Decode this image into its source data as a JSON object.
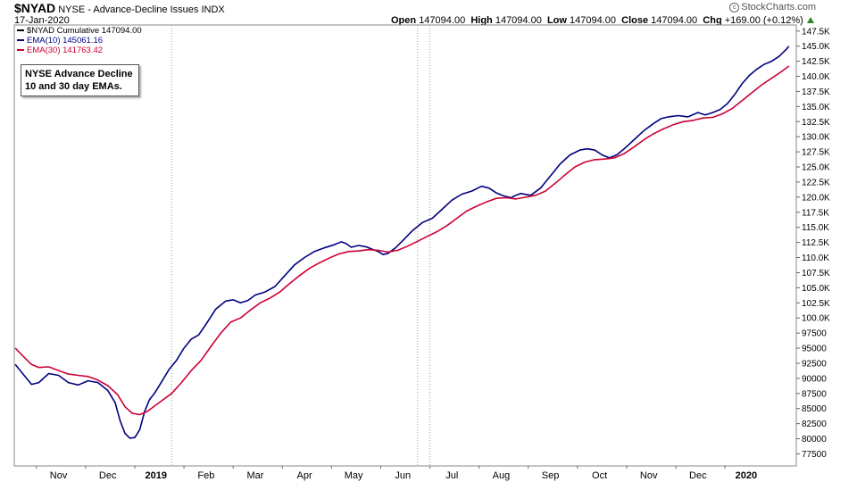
{
  "header": {
    "symbol": "$NYAD",
    "description": "NYSE - Advance-Decline Issues",
    "exchange": "INDX",
    "date": "17-Jan-2020",
    "watermark": "StockCharts.com",
    "open_label": "Open",
    "open": "147094.00",
    "high_label": "High",
    "high": "147094.00",
    "low_label": "Low",
    "low": "147094.00",
    "close_label": "Close",
    "close": "147094.00",
    "chg_label": "Chg",
    "chg": "+169.00 (+0.12%)",
    "chg_arrow_color": "#2a8a2a"
  },
  "legend": [
    {
      "label": "$NYAD Cumulative 147094.00",
      "color": "#000000"
    },
    {
      "label": "EMA(10) 145061.16",
      "color": "#000080"
    },
    {
      "label": "EMA(30) 141763.42",
      "color": "#cc0033"
    }
  ],
  "annotation": {
    "line1": "NYSE Advance Decline",
    "line2": "10 and 30 day EMAs."
  },
  "chart_data": {
    "type": "line",
    "x_tick_labels": [
      "Nov",
      "Dec",
      "2019",
      "Feb",
      "Mar",
      "Apr",
      "May",
      "Jun",
      "Jul",
      "Aug",
      "Sep",
      "Oct",
      "Nov",
      "Dec",
      "2020"
    ],
    "bold_x_ticks": [
      "2019",
      "2020"
    ],
    "y_tick_labels": [
      "147.5K",
      "145.0K",
      "142.5K",
      "140.0K",
      "137.5K",
      "135.0K",
      "132.5K",
      "130.0K",
      "127.5K",
      "125.0K",
      "122.5K",
      "120.0K",
      "117.5K",
      "115.0K",
      "112.5K",
      "110.0K",
      "107.5K",
      "105.0K",
      "102.5K",
      "100.0K",
      "97500",
      "95000",
      "92500",
      "90000",
      "87500",
      "85000",
      "82500",
      "80000",
      "77500"
    ],
    "ylim": [
      75500,
      148500
    ],
    "x_domain_months": [
      -1.3,
      14.6
    ],
    "x_tick_positions_months": [
      -0.4,
      0.6,
      1.6,
      2.6,
      3.6,
      4.6,
      5.6,
      6.6,
      7.6,
      8.6,
      9.6,
      10.6,
      11.6,
      12.6,
      13.6
    ],
    "vertical_dashed_lines_months": [
      1.9,
      6.9,
      7.15
    ],
    "grid": false,
    "legend_position": "top-left",
    "series": [
      {
        "name": "EMA(10) 145061.16",
        "color": "#000080",
        "points": [
          [
            -1.28,
            92300
          ],
          [
            -1.1,
            90500
          ],
          [
            -0.95,
            89000
          ],
          [
            -0.8,
            89300
          ],
          [
            -0.6,
            90800
          ],
          [
            -0.4,
            90500
          ],
          [
            -0.2,
            89300
          ],
          [
            0.0,
            88900
          ],
          [
            0.2,
            89600
          ],
          [
            0.4,
            89300
          ],
          [
            0.6,
            88000
          ],
          [
            0.75,
            86000
          ],
          [
            0.85,
            83000
          ],
          [
            0.95,
            80900
          ],
          [
            1.05,
            80100
          ],
          [
            1.15,
            80200
          ],
          [
            1.25,
            81500
          ],
          [
            1.35,
            84500
          ],
          [
            1.45,
            86500
          ],
          [
            1.55,
            87500
          ],
          [
            1.7,
            89500
          ],
          [
            1.85,
            91500
          ],
          [
            2.0,
            93000
          ],
          [
            2.15,
            95000
          ],
          [
            2.3,
            96500
          ],
          [
            2.45,
            97200
          ],
          [
            2.6,
            99000
          ],
          [
            2.8,
            101500
          ],
          [
            3.0,
            102800
          ],
          [
            3.15,
            103000
          ],
          [
            3.3,
            102500
          ],
          [
            3.45,
            102900
          ],
          [
            3.6,
            103800
          ],
          [
            3.8,
            104300
          ],
          [
            4.0,
            105200
          ],
          [
            4.2,
            107000
          ],
          [
            4.4,
            108800
          ],
          [
            4.6,
            110000
          ],
          [
            4.8,
            111000
          ],
          [
            5.0,
            111600
          ],
          [
            5.2,
            112100
          ],
          [
            5.35,
            112600
          ],
          [
            5.45,
            112300
          ],
          [
            5.55,
            111700
          ],
          [
            5.7,
            112000
          ],
          [
            5.85,
            111800
          ],
          [
            6.0,
            111300
          ],
          [
            6.1,
            111000
          ],
          [
            6.2,
            110500
          ],
          [
            6.3,
            110700
          ],
          [
            6.45,
            111600
          ],
          [
            6.6,
            112800
          ],
          [
            6.8,
            114500
          ],
          [
            7.0,
            115800
          ],
          [
            7.2,
            116500
          ],
          [
            7.4,
            118000
          ],
          [
            7.6,
            119500
          ],
          [
            7.8,
            120500
          ],
          [
            8.0,
            121000
          ],
          [
            8.2,
            121800
          ],
          [
            8.35,
            121500
          ],
          [
            8.5,
            120700
          ],
          [
            8.65,
            120200
          ],
          [
            8.8,
            119900
          ],
          [
            8.9,
            120300
          ],
          [
            9.0,
            120600
          ],
          [
            9.2,
            120300
          ],
          [
            9.4,
            121500
          ],
          [
            9.6,
            123500
          ],
          [
            9.8,
            125500
          ],
          [
            10.0,
            127000
          ],
          [
            10.2,
            127800
          ],
          [
            10.35,
            128000
          ],
          [
            10.5,
            127800
          ],
          [
            10.65,
            127000
          ],
          [
            10.8,
            126500
          ],
          [
            10.95,
            127000
          ],
          [
            11.1,
            128000
          ],
          [
            11.3,
            129500
          ],
          [
            11.5,
            131000
          ],
          [
            11.7,
            132200
          ],
          [
            11.85,
            133000
          ],
          [
            12.0,
            133300
          ],
          [
            12.2,
            133500
          ],
          [
            12.4,
            133300
          ],
          [
            12.6,
            134000
          ],
          [
            12.75,
            133600
          ],
          [
            12.9,
            134000
          ],
          [
            13.05,
            134500
          ],
          [
            13.2,
            135500
          ],
          [
            13.35,
            137000
          ],
          [
            13.5,
            138800
          ],
          [
            13.65,
            140200
          ],
          [
            13.8,
            141200
          ],
          [
            13.95,
            142000
          ],
          [
            14.1,
            142500
          ],
          [
            14.25,
            143300
          ],
          [
            14.4,
            144500
          ],
          [
            14.45,
            145000
          ]
        ]
      },
      {
        "name": "EMA(30) 141763.42",
        "color": "#cc0033",
        "points": [
          [
            -1.28,
            95000
          ],
          [
            -1.1,
            93500
          ],
          [
            -0.95,
            92300
          ],
          [
            -0.8,
            91800
          ],
          [
            -0.6,
            91900
          ],
          [
            -0.4,
            91300
          ],
          [
            -0.2,
            90700
          ],
          [
            0.0,
            90500
          ],
          [
            0.2,
            90300
          ],
          [
            0.4,
            89700
          ],
          [
            0.6,
            88800
          ],
          [
            0.8,
            87300
          ],
          [
            0.95,
            85300
          ],
          [
            1.1,
            84200
          ],
          [
            1.25,
            84000
          ],
          [
            1.4,
            84500
          ],
          [
            1.55,
            85400
          ],
          [
            1.7,
            86300
          ],
          [
            1.9,
            87500
          ],
          [
            2.1,
            89300
          ],
          [
            2.3,
            91300
          ],
          [
            2.5,
            93000
          ],
          [
            2.7,
            95300
          ],
          [
            2.9,
            97500
          ],
          [
            3.1,
            99300
          ],
          [
            3.3,
            100000
          ],
          [
            3.5,
            101300
          ],
          [
            3.7,
            102500
          ],
          [
            3.9,
            103300
          ],
          [
            4.1,
            104300
          ],
          [
            4.3,
            105700
          ],
          [
            4.5,
            107000
          ],
          [
            4.7,
            108200
          ],
          [
            4.9,
            109100
          ],
          [
            5.1,
            109900
          ],
          [
            5.3,
            110600
          ],
          [
            5.5,
            111000
          ],
          [
            5.7,
            111100
          ],
          [
            5.9,
            111300
          ],
          [
            6.1,
            111200
          ],
          [
            6.3,
            110900
          ],
          [
            6.5,
            111200
          ],
          [
            6.7,
            111900
          ],
          [
            6.9,
            112700
          ],
          [
            7.1,
            113500
          ],
          [
            7.3,
            114300
          ],
          [
            7.5,
            115300
          ],
          [
            7.7,
            116500
          ],
          [
            7.9,
            117700
          ],
          [
            8.1,
            118500
          ],
          [
            8.3,
            119200
          ],
          [
            8.5,
            119800
          ],
          [
            8.7,
            119900
          ],
          [
            8.9,
            119700
          ],
          [
            9.1,
            120000
          ],
          [
            9.3,
            120300
          ],
          [
            9.5,
            121000
          ],
          [
            9.7,
            122300
          ],
          [
            9.9,
            123700
          ],
          [
            10.1,
            125000
          ],
          [
            10.3,
            125800
          ],
          [
            10.5,
            126200
          ],
          [
            10.7,
            126300
          ],
          [
            10.9,
            126500
          ],
          [
            11.1,
            127200
          ],
          [
            11.3,
            128300
          ],
          [
            11.5,
            129500
          ],
          [
            11.7,
            130500
          ],
          [
            11.9,
            131300
          ],
          [
            12.1,
            132000
          ],
          [
            12.3,
            132500
          ],
          [
            12.5,
            132700
          ],
          [
            12.7,
            133100
          ],
          [
            12.9,
            133200
          ],
          [
            13.1,
            133800
          ],
          [
            13.3,
            134700
          ],
          [
            13.5,
            136000
          ],
          [
            13.7,
            137300
          ],
          [
            13.9,
            138600
          ],
          [
            14.1,
            139700
          ],
          [
            14.3,
            140800
          ],
          [
            14.45,
            141700
          ]
        ]
      }
    ]
  }
}
